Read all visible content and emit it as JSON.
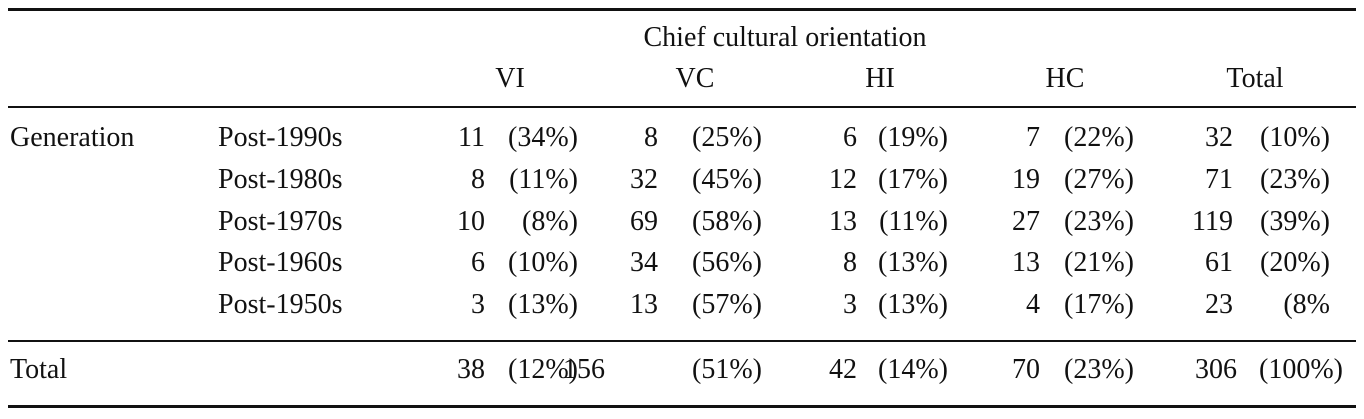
{
  "table": {
    "spanner_label": "Chief cultural orientation",
    "columns": [
      "VI",
      "VC",
      "HI",
      "HC",
      "Total"
    ],
    "group_label": "Generation",
    "rows": [
      {
        "label": "Post-1990s",
        "cells": [
          [
            "11",
            "(34%)"
          ],
          [
            "8",
            "(25%)"
          ],
          [
            "6",
            "(19%)"
          ],
          [
            "7",
            "(22%)"
          ],
          [
            "32",
            "(10%)"
          ]
        ]
      },
      {
        "label": "Post-1980s",
        "cells": [
          [
            "8",
            "(11%)"
          ],
          [
            "32",
            "(45%)"
          ],
          [
            "12",
            "(17%)"
          ],
          [
            "19",
            "(27%)"
          ],
          [
            "71",
            "(23%)"
          ]
        ]
      },
      {
        "label": "Post-1970s",
        "cells": [
          [
            "10",
            "(8%)"
          ],
          [
            "69",
            "(58%)"
          ],
          [
            "13",
            "(11%)"
          ],
          [
            "27",
            "(23%)"
          ],
          [
            "119",
            "(39%)"
          ]
        ]
      },
      {
        "label": "Post-1960s",
        "cells": [
          [
            "6",
            "(10%)"
          ],
          [
            "34",
            "(56%)"
          ],
          [
            "8",
            "(13%)"
          ],
          [
            "13",
            "(21%)"
          ],
          [
            "61",
            "(20%)"
          ]
        ]
      },
      {
        "label": "Post-1950s",
        "cells": [
          [
            "3",
            "(13%)"
          ],
          [
            "13",
            "(57%)"
          ],
          [
            "3",
            "(13%)"
          ],
          [
            "4",
            "(17%)"
          ],
          [
            "23",
            "(8%"
          ]
        ]
      }
    ],
    "total_row": {
      "label": "Total",
      "cells": [
        [
          "38",
          "(12%)"
        ],
        [
          "156",
          "(51%)"
        ],
        [
          "42",
          "(14%)"
        ],
        [
          "70",
          "(23%)"
        ],
        [
          "306",
          "(100%)"
        ]
      ]
    }
  }
}
